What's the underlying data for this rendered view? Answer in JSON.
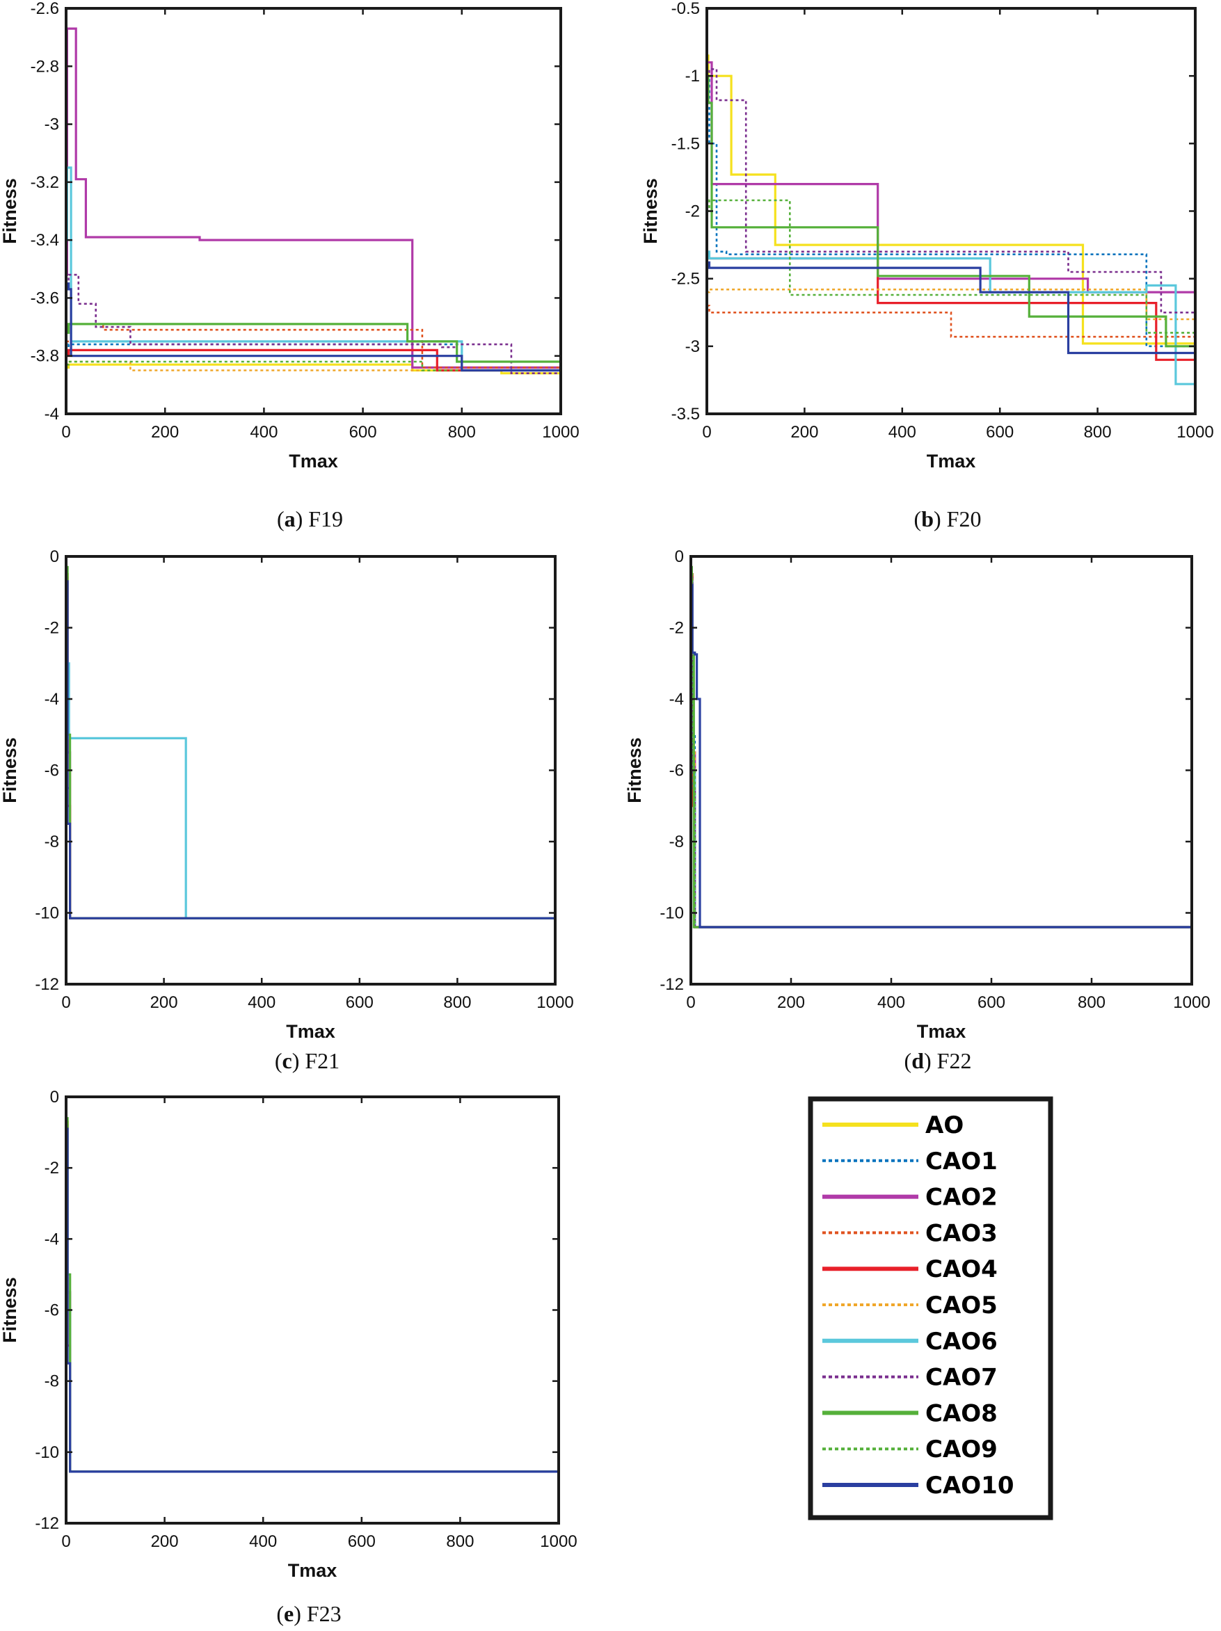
{
  "series_styles": [
    {
      "name": "AO",
      "color": "#F5E11E",
      "dash": "solid"
    },
    {
      "name": "CAO1",
      "color": "#0072BD",
      "dash": "dotted"
    },
    {
      "name": "CAO2",
      "color": "#B03AA8",
      "dash": "solid"
    },
    {
      "name": "CAO3",
      "color": "#E05320",
      "dash": "dotted"
    },
    {
      "name": "CAO4",
      "color": "#E8202A",
      "dash": "solid"
    },
    {
      "name": "CAO5",
      "color": "#F0A72A",
      "dash": "dotted"
    },
    {
      "name": "CAO6",
      "color": "#5BC8DC",
      "dash": "solid"
    },
    {
      "name": "CAO7",
      "color": "#7A2E8E",
      "dash": "dotted"
    },
    {
      "name": "CAO8",
      "color": "#55B03A",
      "dash": "solid"
    },
    {
      "name": "CAO9",
      "color": "#55B03A",
      "dash": "dotted"
    },
    {
      "name": "CAO10",
      "color": "#2A3FA0",
      "dash": "solid"
    }
  ],
  "legend": {
    "entries": [
      "AO",
      "CAO1",
      "CAO2",
      "CAO3",
      "CAO4",
      "CAO5",
      "CAO6",
      "CAO7",
      "CAO8",
      "CAO9",
      "CAO10"
    ]
  },
  "chart_data": [
    {
      "id": "F19",
      "type": "line",
      "caption_letter": "a",
      "caption_text": " F19",
      "xlabel": "Tmax",
      "ylabel": "Fitness",
      "xlim": [
        0,
        1000
      ],
      "ylim": [
        -4,
        -2.6
      ],
      "xticks": [
        "0",
        "200",
        "400",
        "600",
        "800",
        "1000"
      ],
      "yticks": [
        "-4",
        "-3.8",
        "-3.6",
        "-3.4",
        "-3.2",
        "-3",
        "-2.8",
        "-2.6"
      ],
      "series": [
        {
          "name": "AO",
          "x": [
            0,
            5,
            700,
            880,
            1000
          ],
          "y": [
            -3.84,
            -3.83,
            -3.85,
            -3.86,
            -3.86
          ]
        },
        {
          "name": "CAO1",
          "x": [
            0,
            5,
            750,
            800,
            1000
          ],
          "y": [
            -3.78,
            -3.76,
            -3.76,
            -3.84,
            -3.86
          ]
        },
        {
          "name": "CAO2",
          "x": [
            0,
            2,
            20,
            40,
            270,
            690,
            700,
            1000
          ],
          "y": [
            -3.52,
            -2.67,
            -3.19,
            -3.39,
            -3.4,
            -3.4,
            -3.84,
            -3.86
          ]
        },
        {
          "name": "CAO3",
          "x": [
            0,
            10,
            75,
            720,
            1000
          ],
          "y": [
            -3.75,
            -3.69,
            -3.71,
            -3.84,
            -3.86
          ]
        },
        {
          "name": "CAO4",
          "x": [
            0,
            5,
            710,
            750,
            1000
          ],
          "y": [
            -3.8,
            -3.78,
            -3.78,
            -3.85,
            -3.86
          ]
        },
        {
          "name": "CAO5",
          "x": [
            0,
            5,
            130,
            750,
            1000
          ],
          "y": [
            -3.83,
            -3.82,
            -3.85,
            -3.85,
            -3.86
          ]
        },
        {
          "name": "CAO6",
          "x": [
            0,
            2,
            10,
            770,
            800,
            1000
          ],
          "y": [
            -3.4,
            -3.15,
            -3.75,
            -3.75,
            -3.85,
            -3.86
          ]
        },
        {
          "name": "CAO7",
          "x": [
            0,
            5,
            25,
            60,
            130,
            760,
            790,
            900,
            1000
          ],
          "y": [
            -3.55,
            -3.52,
            -3.62,
            -3.7,
            -3.76,
            -3.77,
            -3.76,
            -3.86,
            -3.86
          ]
        },
        {
          "name": "CAO8",
          "x": [
            0,
            5,
            690,
            790,
            1000
          ],
          "y": [
            -3.72,
            -3.69,
            -3.75,
            -3.82,
            -3.86
          ]
        },
        {
          "name": "CAO9",
          "x": [
            0,
            5,
            700,
            720,
            1000
          ],
          "y": [
            -3.83,
            -3.82,
            -3.82,
            -3.85,
            -3.86
          ]
        },
        {
          "name": "CAO10",
          "x": [
            0,
            5,
            10,
            760,
            800,
            1000
          ],
          "y": [
            -3.55,
            -3.57,
            -3.8,
            -3.8,
            -3.85,
            -3.86
          ]
        }
      ]
    },
    {
      "id": "F20",
      "type": "line",
      "caption_letter": "b",
      "caption_text": " F20",
      "xlabel": "Tmax",
      "ylabel": "Fitness",
      "xlim": [
        0,
        1000
      ],
      "ylim": [
        -3.5,
        -0.5
      ],
      "xticks": [
        "0",
        "200",
        "400",
        "600",
        "800",
        "1000"
      ],
      "yticks": [
        "-3.5",
        "-3",
        "-2.5",
        "-2",
        "-1.5",
        "-1",
        "-0.5"
      ],
      "series": [
        {
          "name": "AO",
          "x": [
            0,
            3,
            50,
            140,
            750,
            770,
            1000
          ],
          "y": [
            -0.85,
            -1.0,
            -1.73,
            -2.25,
            -2.25,
            -2.98,
            -3.15
          ]
        },
        {
          "name": "CAO1",
          "x": [
            0,
            5,
            20,
            40,
            760,
            900,
            1000
          ],
          "y": [
            -1.0,
            -1.5,
            -2.3,
            -2.32,
            -2.32,
            -3.0,
            -3.2
          ]
        },
        {
          "name": "CAO2",
          "x": [
            0,
            10,
            340,
            350,
            700,
            780,
            1000
          ],
          "y": [
            -0.9,
            -1.8,
            -1.8,
            -2.5,
            -2.5,
            -2.6,
            -3.1
          ]
        },
        {
          "name": "CAO3",
          "x": [
            0,
            5,
            490,
            500,
            780,
            1000
          ],
          "y": [
            -2.7,
            -2.75,
            -2.75,
            -2.93,
            -2.93,
            -3.15
          ]
        },
        {
          "name": "CAO4",
          "x": [
            0,
            5,
            350,
            780,
            920,
            1000
          ],
          "y": [
            -2.35,
            -2.35,
            -2.68,
            -2.68,
            -3.1,
            -3.25
          ]
        },
        {
          "name": "CAO5",
          "x": [
            0,
            5,
            750,
            900,
            1000
          ],
          "y": [
            -2.6,
            -2.58,
            -2.58,
            -2.8,
            -3.2
          ]
        },
        {
          "name": "CAO6",
          "x": [
            0,
            5,
            580,
            860,
            900,
            960,
            1000
          ],
          "y": [
            -2.3,
            -2.35,
            -2.6,
            -2.6,
            -2.55,
            -3.28,
            -3.28
          ]
        },
        {
          "name": "CAO7",
          "x": [
            0,
            5,
            20,
            50,
            80,
            740,
            930,
            1000
          ],
          "y": [
            -1.0,
            -0.95,
            -1.18,
            -1.18,
            -2.3,
            -2.45,
            -2.75,
            -3.1
          ]
        },
        {
          "name": "CAO8",
          "x": [
            0,
            3,
            10,
            340,
            350,
            650,
            660,
            940,
            1000
          ],
          "y": [
            -1.0,
            -1.2,
            -2.12,
            -2.12,
            -2.48,
            -2.48,
            -2.78,
            -3.0,
            -3.15
          ]
        },
        {
          "name": "CAO9",
          "x": [
            0,
            5,
            170,
            650,
            900,
            1000
          ],
          "y": [
            -2.0,
            -1.92,
            -2.62,
            -2.62,
            -2.9,
            -3.1
          ]
        },
        {
          "name": "CAO10",
          "x": [
            0,
            5,
            530,
            560,
            740,
            1000
          ],
          "y": [
            -2.38,
            -2.42,
            -2.42,
            -2.6,
            -3.05,
            -3.15
          ]
        }
      ]
    },
    {
      "id": "F21",
      "type": "line",
      "caption_letter": "c",
      "caption_text": " F21",
      "xlabel": "Tmax",
      "ylabel": "Fitness",
      "xlim": [
        0,
        1000
      ],
      "ylim": [
        -12,
        0
      ],
      "xticks": [
        "0",
        "200",
        "400",
        "600",
        "800",
        "1000"
      ],
      "yticks": [
        "-12",
        "-10",
        "-8",
        "-6",
        "-4",
        "-2",
        "0"
      ],
      "series": [
        {
          "name": "AO",
          "x": [
            0,
            3,
            8,
            1000
          ],
          "y": [
            -0.5,
            -6.0,
            -10.15,
            -10.15
          ]
        },
        {
          "name": "CAO1",
          "x": [
            0,
            3,
            8,
            1000
          ],
          "y": [
            -0.6,
            -5.0,
            -10.15,
            -10.15
          ]
        },
        {
          "name": "CAO2",
          "x": [
            0,
            3,
            8,
            1000
          ],
          "y": [
            -0.6,
            -5.5,
            -10.15,
            -10.15
          ]
        },
        {
          "name": "CAO3",
          "x": [
            0,
            3,
            8,
            1000
          ],
          "y": [
            -0.7,
            -6.0,
            -10.15,
            -10.15
          ]
        },
        {
          "name": "CAO4",
          "x": [
            0,
            3,
            8,
            1000
          ],
          "y": [
            -0.5,
            -7.0,
            -10.15,
            -10.15
          ]
        },
        {
          "name": "CAO5",
          "x": [
            0,
            3,
            8,
            1000
          ],
          "y": [
            -0.6,
            -5.5,
            -10.15,
            -10.15
          ]
        },
        {
          "name": "CAO6",
          "x": [
            0,
            2,
            6,
            240,
            245,
            1000
          ],
          "y": [
            -0.7,
            -3.0,
            -5.1,
            -5.1,
            -10.15,
            -10.15
          ]
        },
        {
          "name": "CAO7",
          "x": [
            0,
            3,
            8,
            1000
          ],
          "y": [
            -0.6,
            -6.5,
            -10.15,
            -10.15
          ]
        },
        {
          "name": "CAO8",
          "x": [
            0,
            3,
            8,
            1000
          ],
          "y": [
            -0.3,
            -5.0,
            -10.15,
            -10.15
          ]
        },
        {
          "name": "CAO9",
          "x": [
            0,
            3,
            8,
            1000
          ],
          "y": [
            -0.5,
            -6.0,
            -10.15,
            -10.15
          ]
        },
        {
          "name": "CAO10",
          "x": [
            0,
            3,
            8,
            1000
          ],
          "y": [
            -0.7,
            -7.5,
            -10.15,
            -10.15
          ]
        }
      ]
    },
    {
      "id": "F22",
      "type": "line",
      "caption_letter": "d",
      "caption_text": " F22",
      "xlabel": "Tmax",
      "ylabel": "Fitness",
      "xlim": [
        0,
        1000
      ],
      "ylim": [
        -12,
        0
      ],
      "xticks": [
        "0",
        "200",
        "400",
        "600",
        "800",
        "1000"
      ],
      "yticks": [
        "-12",
        "-10",
        "-8",
        "-6",
        "-4",
        "-2",
        "0"
      ],
      "series": [
        {
          "name": "AO",
          "x": [
            0,
            3,
            8,
            1000
          ],
          "y": [
            -0.5,
            -6.0,
            -10.4,
            -10.4
          ]
        },
        {
          "name": "CAO1",
          "x": [
            0,
            3,
            8,
            1000
          ],
          "y": [
            -0.6,
            -5.0,
            -10.4,
            -10.4
          ]
        },
        {
          "name": "CAO2",
          "x": [
            0,
            3,
            8,
            1000
          ],
          "y": [
            -0.6,
            -5.5,
            -10.4,
            -10.4
          ]
        },
        {
          "name": "CAO3",
          "x": [
            0,
            3,
            8,
            1000
          ],
          "y": [
            -0.7,
            -6.0,
            -10.4,
            -10.4
          ]
        },
        {
          "name": "CAO4",
          "x": [
            0,
            3,
            8,
            1000
          ],
          "y": [
            -0.5,
            -7.0,
            -10.4,
            -10.4
          ]
        },
        {
          "name": "CAO5",
          "x": [
            0,
            3,
            8,
            1000
          ],
          "y": [
            -0.6,
            -5.5,
            -10.4,
            -10.4
          ]
        },
        {
          "name": "CAO6",
          "x": [
            0,
            3,
            8,
            1000
          ],
          "y": [
            -0.7,
            -6.0,
            -10.4,
            -10.4
          ]
        },
        {
          "name": "CAO7",
          "x": [
            0,
            3,
            8,
            1000
          ],
          "y": [
            -0.6,
            -6.5,
            -10.4,
            -10.4
          ]
        },
        {
          "name": "CAO8",
          "x": [
            0,
            2,
            6,
            1000
          ],
          "y": [
            -0.3,
            -2.7,
            -10.4,
            -10.4
          ]
        },
        {
          "name": "CAO9",
          "x": [
            0,
            3,
            8,
            1000
          ],
          "y": [
            -0.5,
            -6.0,
            -10.4,
            -10.4
          ]
        },
        {
          "name": "CAO10",
          "x": [
            0,
            3,
            8,
            12,
            18,
            1000
          ],
          "y": [
            -0.8,
            -2.7,
            -2.75,
            -4.0,
            -10.4,
            -10.4
          ]
        }
      ]
    },
    {
      "id": "F23",
      "type": "line",
      "caption_letter": "e",
      "caption_text": " F23",
      "xlabel": "Tmax",
      "ylabel": "Fitness",
      "xlim": [
        0,
        1000
      ],
      "ylim": [
        -12,
        0
      ],
      "xticks": [
        "0",
        "200",
        "400",
        "600",
        "800",
        "1000"
      ],
      "yticks": [
        "-12",
        "-10",
        "-8",
        "-6",
        "-4",
        "-2",
        "0"
      ],
      "series": [
        {
          "name": "AO",
          "x": [
            0,
            3,
            8,
            1000
          ],
          "y": [
            -0.7,
            -6.0,
            -10.55,
            -10.55
          ]
        },
        {
          "name": "CAO1",
          "x": [
            0,
            3,
            8,
            1000
          ],
          "y": [
            -0.8,
            -5.0,
            -10.55,
            -10.55
          ]
        },
        {
          "name": "CAO2",
          "x": [
            0,
            3,
            8,
            1000
          ],
          "y": [
            -0.8,
            -5.5,
            -10.55,
            -10.55
          ]
        },
        {
          "name": "CAO3",
          "x": [
            0,
            3,
            8,
            1000
          ],
          "y": [
            -0.9,
            -6.0,
            -10.55,
            -10.55
          ]
        },
        {
          "name": "CAO4",
          "x": [
            0,
            3,
            8,
            1000
          ],
          "y": [
            -0.7,
            -7.0,
            -10.55,
            -10.55
          ]
        },
        {
          "name": "CAO5",
          "x": [
            0,
            3,
            8,
            1000
          ],
          "y": [
            -0.8,
            -5.5,
            -10.55,
            -10.55
          ]
        },
        {
          "name": "CAO6",
          "x": [
            0,
            3,
            8,
            1000
          ],
          "y": [
            -0.9,
            -6.0,
            -10.55,
            -10.55
          ]
        },
        {
          "name": "CAO7",
          "x": [
            0,
            3,
            8,
            1000
          ],
          "y": [
            -0.8,
            -6.5,
            -10.55,
            -10.55
          ]
        },
        {
          "name": "CAO8",
          "x": [
            0,
            3,
            8,
            1000
          ],
          "y": [
            -0.6,
            -5.0,
            -10.55,
            -10.55
          ]
        },
        {
          "name": "CAO9",
          "x": [
            0,
            3,
            8,
            1000
          ],
          "y": [
            -0.7,
            -6.0,
            -10.55,
            -10.55
          ]
        },
        {
          "name": "CAO10",
          "x": [
            0,
            3,
            8,
            1000
          ],
          "y": [
            -0.9,
            -7.5,
            -10.55,
            -10.55
          ]
        }
      ]
    }
  ]
}
